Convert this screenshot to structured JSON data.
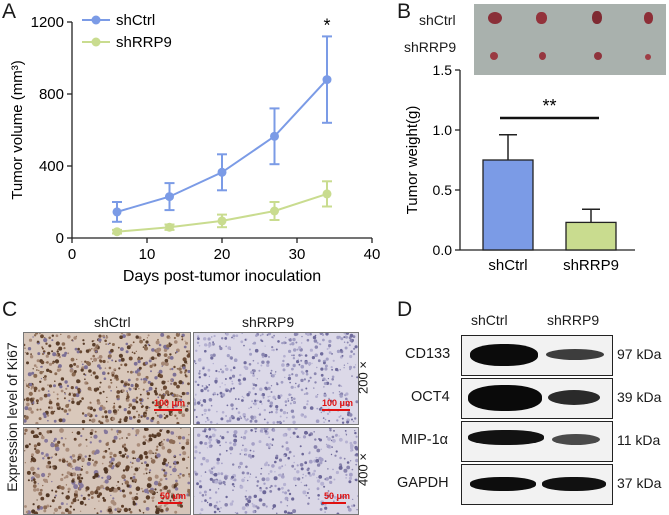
{
  "panels": {
    "a": "A",
    "b": "B",
    "c": "C",
    "d": "D"
  },
  "chart_data": [
    {
      "type": "line",
      "panel": "A",
      "title": "",
      "xlabel": "Days post-tumor inoculation",
      "ylabel": "Tumor volume (mm³)",
      "xlim": [
        0,
        40
      ],
      "ylim": [
        0,
        1200
      ],
      "xticks": [
        0,
        10,
        20,
        30,
        40
      ],
      "yticks": [
        0,
        400,
        800,
        1200
      ],
      "legend_position": "top-left",
      "annotation": "*",
      "series": [
        {
          "name": "shCtrl",
          "color": "#7b9be6",
          "x": [
            6,
            13,
            20,
            27,
            34
          ],
          "y": [
            145,
            230,
            365,
            565,
            880
          ],
          "err": [
            55,
            75,
            100,
            155,
            240
          ]
        },
        {
          "name": "shRRP9",
          "color": "#c9dc8f",
          "x": [
            6,
            13,
            20,
            27,
            34
          ],
          "y": [
            35,
            60,
            95,
            150,
            245
          ],
          "err": [
            10,
            15,
            35,
            50,
            70
          ]
        }
      ]
    },
    {
      "type": "bar",
      "panel": "B",
      "title": "",
      "xlabel": "",
      "ylabel": "Tumor weight(g)",
      "categories": [
        "shCtrl",
        "shRRP9"
      ],
      "values": [
        0.75,
        0.23
      ],
      "errors": [
        0.21,
        0.11
      ],
      "colors": [
        "#7b9be6",
        "#c9dc8f"
      ],
      "ylim": [
        0,
        1.5
      ],
      "yticks": [
        "0.0",
        "0.5",
        "1.0",
        "1.5"
      ],
      "annotation": "**"
    }
  ],
  "photo_b": {
    "row_labels": [
      "shCtrl",
      "shRRP9"
    ]
  },
  "panel_c": {
    "columns": [
      "shCtrl",
      "shRRP9"
    ],
    "ylabel": "Expression level of Ki67",
    "magnifications": [
      "200 ×",
      "400 ×"
    ],
    "scalebars": [
      "100 μm",
      "50 μm"
    ]
  },
  "panel_d": {
    "columns": [
      "shCtrl",
      "shRRP9"
    ],
    "rows": [
      {
        "label": "CD133",
        "kda": "97 kDa"
      },
      {
        "label": "OCT4",
        "kda": "39 kDa"
      },
      {
        "label": "MIP-1α",
        "kda": "11 kDa"
      },
      {
        "label": "GAPDH",
        "kda": "37 kDa"
      }
    ]
  }
}
